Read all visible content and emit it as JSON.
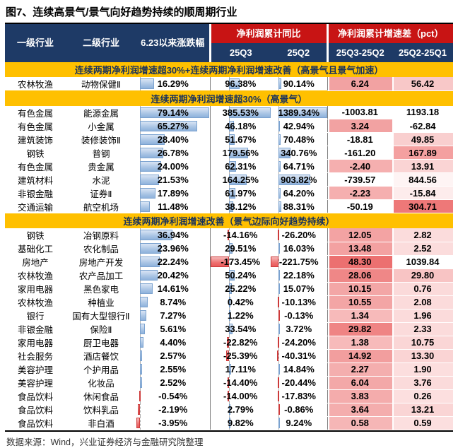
{
  "colors": {
    "header_navy": "#1E3A66",
    "header_red": "#C81414",
    "band_gold": "#FFC000",
    "band_text": "#17315C",
    "bar_positive_blue": "#A9C4E4",
    "bar_positive_border": "#7BA2CF",
    "bar_negative_red": "#E85A5A",
    "bar_negative_border": "#CC3A3A",
    "heat_strong": "#EC7070",
    "heat_light": "#FBDCDC"
  },
  "chart_data": {
    "type": "table",
    "title": "图7、连续高景气/景气向好趋势持续的顺周期行业",
    "source": "数据来源：Wind，兴业证券经济与金融研究院整理",
    "headers": {
      "l1": "一级行业",
      "l2": "二级行业",
      "chg": "6.23以来涨跌幅",
      "profit_group": "净利润累计同比",
      "q3": "25Q3",
      "q2": "25Q2",
      "diff_group": "净利润累计增速差（pct）",
      "d1": "25Q3-25Q2",
      "d2": "25Q2-25Q1"
    },
    "bar_ranges": {
      "chg": {
        "min": -3.95,
        "max": 79.14
      },
      "q3": {
        "min": -173.45,
        "max": 385.53
      },
      "q2": {
        "min": -221.75,
        "max": 1389.34
      }
    },
    "sections": [
      {
        "band": "连续两期净利润增速超30%+连续两期净利润增速改善（高景气且景气加速）",
        "rows": [
          {
            "l1": "农林牧渔",
            "l2": "动物保健Ⅱ",
            "chg": 16.29,
            "q3": 96.38,
            "q2": 90.14,
            "d1": 6.24,
            "d2": 56.42,
            "d1c": "#F2A2A2",
            "d2c": "#F8C8C8"
          }
        ]
      },
      {
        "band": "连续两期净利润增速超30%（高景气）",
        "rows": [
          {
            "l1": "有色金属",
            "l2": "能源金属",
            "chg": 79.14,
            "q3": 385.53,
            "q2": 1389.34,
            "d1": -1003.81,
            "d2": 1193.18,
            "d1c": "#FFFFFF",
            "d2c": "#FFFFFF"
          },
          {
            "l1": "有色金属",
            "l2": "小金属",
            "chg": 65.27,
            "q3": 46.18,
            "q2": 42.94,
            "d1": 3.24,
            "d2": -62.84,
            "d1c": "#F2A2A2",
            "d2c": "#FFFFFF"
          },
          {
            "l1": "建筑装饰",
            "l2": "装修装饰Ⅱ",
            "chg": 28.4,
            "q3": 51.67,
            "q2": 70.48,
            "d1": -18.81,
            "d2": 49.85,
            "d1c": "#FFFFFF",
            "d2c": "#F9CFCF"
          },
          {
            "l1": "钢铁",
            "l2": "普钢",
            "chg": 26.78,
            "q3": 179.56,
            "q2": 340.76,
            "d1": -161.2,
            "d2": 167.89,
            "d1c": "#FFFFFF",
            "d2c": "#F4A0A0"
          },
          {
            "l1": "有色金属",
            "l2": "贵金属",
            "chg": 24.0,
            "q3": 62.31,
            "q2": 64.71,
            "d1": -2.4,
            "d2": 13.91,
            "d1c": "#F5AFAF",
            "d2c": "#FAD4D4"
          },
          {
            "l1": "建筑材料",
            "l2": "水泥",
            "chg": 21.53,
            "q3": 164.25,
            "q2": 903.82,
            "d1": -739.57,
            "d2": 844.56,
            "d1c": "#FFFFFF",
            "d2c": "#FEF4F4"
          },
          {
            "l1": "非银金融",
            "l2": "证券Ⅱ",
            "chg": 17.89,
            "q3": 61.97,
            "q2": 64.2,
            "d1": -2.23,
            "d2": -15.84,
            "d1c": "#F5AFAF",
            "d2c": "#FDECEC"
          },
          {
            "l1": "交通运输",
            "l2": "航空机场",
            "chg": 11.48,
            "q3": 38.12,
            "q2": 88.31,
            "d1": -50.19,
            "d2": 304.71,
            "d1c": "#FFFFFF",
            "d2c": "#EE7878"
          }
        ]
      },
      {
        "band": "连续两期净利润增速改善（景气边际向好趋势持续）",
        "rows": [
          {
            "l1": "钢铁",
            "l2": "冶钢原料",
            "chg": 36.94,
            "q3": -14.16,
            "q2": -26.2,
            "d1": 12.05,
            "d2": 2.82,
            "d1c": "#F3A3A3",
            "d2c": "#FBDCDC"
          },
          {
            "l1": "基础化工",
            "l2": "农化制品",
            "chg": 23.96,
            "q3": 29.51,
            "q2": 16.03,
            "d1": 13.48,
            "d2": 2.52,
            "d1c": "#F3A1A1",
            "d2c": "#FBDCDC"
          },
          {
            "l1": "房地产",
            "l2": "房地产开发",
            "chg": 22.24,
            "q3": -173.45,
            "q2": -221.75,
            "d1": 48.3,
            "d2": 1039.84,
            "d1c": "#EC7070",
            "d2c": "#FFFFFF"
          },
          {
            "l1": "农林牧渔",
            "l2": "农产品加工",
            "chg": 20.42,
            "q3": 50.24,
            "q2": 22.18,
            "d1": 28.06,
            "d2": 29.8,
            "d1c": "#EF8787",
            "d2c": "#F8C4C4"
          },
          {
            "l1": "家用电器",
            "l2": "黑色家电",
            "chg": 14.61,
            "q3": 25.22,
            "q2": 15.07,
            "d1": 10.15,
            "d2": 0.76,
            "d1c": "#F3A6A6",
            "d2c": "#FBDADA"
          },
          {
            "l1": "农林牧渔",
            "l2": "种植业",
            "chg": 8.74,
            "q3": 0.42,
            "q2": -10.13,
            "d1": 10.55,
            "d2": 2.08,
            "d1c": "#F3A5A5",
            "d2c": "#FBDBDB"
          },
          {
            "l1": "银行",
            "l2": "国有大型银行Ⅱ",
            "chg": 7.27,
            "q3": 1.22,
            "q2": -0.13,
            "d1": 1.34,
            "d2": 1.96,
            "d1c": "#F7BABA",
            "d2c": "#FBDBDB"
          },
          {
            "l1": "非银金融",
            "l2": "保险Ⅱ",
            "chg": 5.61,
            "q3": 33.54,
            "q2": 3.72,
            "d1": 29.82,
            "d2": 2.33,
            "d1c": "#EF8484",
            "d2c": "#FBDBDB"
          },
          {
            "l1": "家用电器",
            "l2": "厨卫电器",
            "chg": 4.4,
            "q3": -22.82,
            "q2": -24.2,
            "d1": 1.38,
            "d2": 10.75,
            "d1c": "#F7BABA",
            "d2c": "#FAD6D6"
          },
          {
            "l1": "社会服务",
            "l2": "酒店餐饮",
            "chg": 2.57,
            "q3": -25.39,
            "q2": -40.31,
            "d1": 14.92,
            "d2": 13.3,
            "d1c": "#F29E9E",
            "d2c": "#FAD4D4"
          },
          {
            "l1": "美容护理",
            "l2": "个护用品",
            "chg": 2.55,
            "q3": 17.11,
            "q2": 14.84,
            "d1": 2.27,
            "d2": 1.9,
            "d1c": "#F4AEAE",
            "d2c": "#FCDEDE"
          },
          {
            "l1": "美容护理",
            "l2": "化妆品",
            "chg": 2.52,
            "q3": -14.4,
            "q2": -20.44,
            "d1": 6.04,
            "d2": 3.76,
            "d1c": "#F3A8A8",
            "d2c": "#FBDBDB"
          },
          {
            "l1": "食品饮料",
            "l2": "休闲食品",
            "chg": -0.54,
            "q3": -14.0,
            "q2": -17.83,
            "d1": 3.83,
            "d2": 0.26,
            "d1c": "#F4ACAC",
            "d2c": "#FCDFDF"
          },
          {
            "l1": "食品饮料",
            "l2": "饮料乳品",
            "chg": -2.19,
            "q3": 2.79,
            "q2": -0.86,
            "d1": 3.64,
            "d2": 13.21,
            "d1c": "#F4ADAD",
            "d2c": "#FAD5D5"
          },
          {
            "l1": "食品饮料",
            "l2": "非白酒",
            "chg": -3.95,
            "q3": 9.82,
            "q2": 9.24,
            "d1": 0.58,
            "d2": 0.59,
            "d1c": "#F6B6B6",
            "d2c": "#FCDFDF"
          }
        ]
      }
    ]
  }
}
